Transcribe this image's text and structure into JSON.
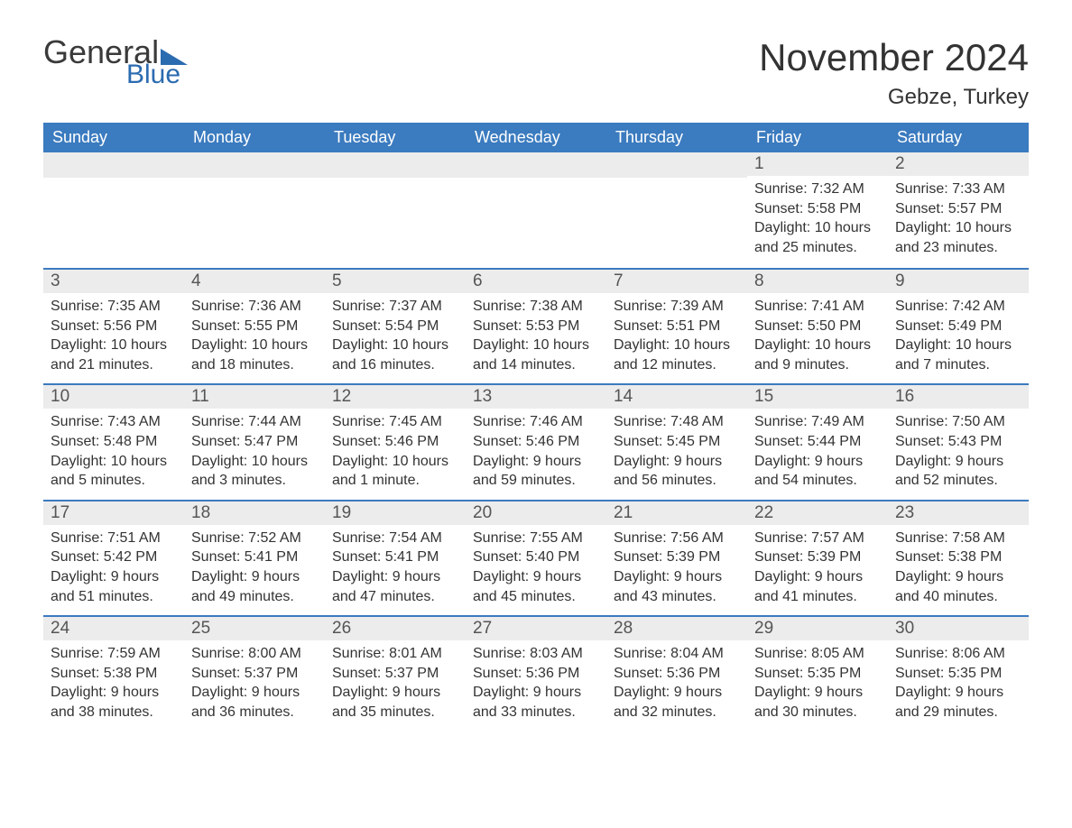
{
  "logo": {
    "word1": "General",
    "word2": "Blue"
  },
  "header": {
    "title": "November 2024",
    "location": "Gebze, Turkey"
  },
  "colors": {
    "header_bg": "#3b7bbf",
    "header_text": "#ffffff",
    "row_divider": "#3b7bbf",
    "daynum_bg": "#ececec",
    "logo_accent": "#2b6bb0",
    "body_text": "#333333",
    "page_bg": "#ffffff"
  },
  "layout": {
    "columns": 7,
    "rows": 5
  },
  "weekdays": [
    "Sunday",
    "Monday",
    "Tuesday",
    "Wednesday",
    "Thursday",
    "Friday",
    "Saturday"
  ],
  "weeks": [
    [
      null,
      null,
      null,
      null,
      null,
      {
        "n": "1",
        "sunrise": "Sunrise: 7:32 AM",
        "sunset": "Sunset: 5:58 PM",
        "daylight": "Daylight: 10 hours and 25 minutes."
      },
      {
        "n": "2",
        "sunrise": "Sunrise: 7:33 AM",
        "sunset": "Sunset: 5:57 PM",
        "daylight": "Daylight: 10 hours and 23 minutes."
      }
    ],
    [
      {
        "n": "3",
        "sunrise": "Sunrise: 7:35 AM",
        "sunset": "Sunset: 5:56 PM",
        "daylight": "Daylight: 10 hours and 21 minutes."
      },
      {
        "n": "4",
        "sunrise": "Sunrise: 7:36 AM",
        "sunset": "Sunset: 5:55 PM",
        "daylight": "Daylight: 10 hours and 18 minutes."
      },
      {
        "n": "5",
        "sunrise": "Sunrise: 7:37 AM",
        "sunset": "Sunset: 5:54 PM",
        "daylight": "Daylight: 10 hours and 16 minutes."
      },
      {
        "n": "6",
        "sunrise": "Sunrise: 7:38 AM",
        "sunset": "Sunset: 5:53 PM",
        "daylight": "Daylight: 10 hours and 14 minutes."
      },
      {
        "n": "7",
        "sunrise": "Sunrise: 7:39 AM",
        "sunset": "Sunset: 5:51 PM",
        "daylight": "Daylight: 10 hours and 12 minutes."
      },
      {
        "n": "8",
        "sunrise": "Sunrise: 7:41 AM",
        "sunset": "Sunset: 5:50 PM",
        "daylight": "Daylight: 10 hours and 9 minutes."
      },
      {
        "n": "9",
        "sunrise": "Sunrise: 7:42 AM",
        "sunset": "Sunset: 5:49 PM",
        "daylight": "Daylight: 10 hours and 7 minutes."
      }
    ],
    [
      {
        "n": "10",
        "sunrise": "Sunrise: 7:43 AM",
        "sunset": "Sunset: 5:48 PM",
        "daylight": "Daylight: 10 hours and 5 minutes."
      },
      {
        "n": "11",
        "sunrise": "Sunrise: 7:44 AM",
        "sunset": "Sunset: 5:47 PM",
        "daylight": "Daylight: 10 hours and 3 minutes."
      },
      {
        "n": "12",
        "sunrise": "Sunrise: 7:45 AM",
        "sunset": "Sunset: 5:46 PM",
        "daylight": "Daylight: 10 hours and 1 minute."
      },
      {
        "n": "13",
        "sunrise": "Sunrise: 7:46 AM",
        "sunset": "Sunset: 5:46 PM",
        "daylight": "Daylight: 9 hours and 59 minutes."
      },
      {
        "n": "14",
        "sunrise": "Sunrise: 7:48 AM",
        "sunset": "Sunset: 5:45 PM",
        "daylight": "Daylight: 9 hours and 56 minutes."
      },
      {
        "n": "15",
        "sunrise": "Sunrise: 7:49 AM",
        "sunset": "Sunset: 5:44 PM",
        "daylight": "Daylight: 9 hours and 54 minutes."
      },
      {
        "n": "16",
        "sunrise": "Sunrise: 7:50 AM",
        "sunset": "Sunset: 5:43 PM",
        "daylight": "Daylight: 9 hours and 52 minutes."
      }
    ],
    [
      {
        "n": "17",
        "sunrise": "Sunrise: 7:51 AM",
        "sunset": "Sunset: 5:42 PM",
        "daylight": "Daylight: 9 hours and 51 minutes."
      },
      {
        "n": "18",
        "sunrise": "Sunrise: 7:52 AM",
        "sunset": "Sunset: 5:41 PM",
        "daylight": "Daylight: 9 hours and 49 minutes."
      },
      {
        "n": "19",
        "sunrise": "Sunrise: 7:54 AM",
        "sunset": "Sunset: 5:41 PM",
        "daylight": "Daylight: 9 hours and 47 minutes."
      },
      {
        "n": "20",
        "sunrise": "Sunrise: 7:55 AM",
        "sunset": "Sunset: 5:40 PM",
        "daylight": "Daylight: 9 hours and 45 minutes."
      },
      {
        "n": "21",
        "sunrise": "Sunrise: 7:56 AM",
        "sunset": "Sunset: 5:39 PM",
        "daylight": "Daylight: 9 hours and 43 minutes."
      },
      {
        "n": "22",
        "sunrise": "Sunrise: 7:57 AM",
        "sunset": "Sunset: 5:39 PM",
        "daylight": "Daylight: 9 hours and 41 minutes."
      },
      {
        "n": "23",
        "sunrise": "Sunrise: 7:58 AM",
        "sunset": "Sunset: 5:38 PM",
        "daylight": "Daylight: 9 hours and 40 minutes."
      }
    ],
    [
      {
        "n": "24",
        "sunrise": "Sunrise: 7:59 AM",
        "sunset": "Sunset: 5:38 PM",
        "daylight": "Daylight: 9 hours and 38 minutes."
      },
      {
        "n": "25",
        "sunrise": "Sunrise: 8:00 AM",
        "sunset": "Sunset: 5:37 PM",
        "daylight": "Daylight: 9 hours and 36 minutes."
      },
      {
        "n": "26",
        "sunrise": "Sunrise: 8:01 AM",
        "sunset": "Sunset: 5:37 PM",
        "daylight": "Daylight: 9 hours and 35 minutes."
      },
      {
        "n": "27",
        "sunrise": "Sunrise: 8:03 AM",
        "sunset": "Sunset: 5:36 PM",
        "daylight": "Daylight: 9 hours and 33 minutes."
      },
      {
        "n": "28",
        "sunrise": "Sunrise: 8:04 AM",
        "sunset": "Sunset: 5:36 PM",
        "daylight": "Daylight: 9 hours and 32 minutes."
      },
      {
        "n": "29",
        "sunrise": "Sunrise: 8:05 AM",
        "sunset": "Sunset: 5:35 PM",
        "daylight": "Daylight: 9 hours and 30 minutes."
      },
      {
        "n": "30",
        "sunrise": "Sunrise: 8:06 AM",
        "sunset": "Sunset: 5:35 PM",
        "daylight": "Daylight: 9 hours and 29 minutes."
      }
    ]
  ]
}
